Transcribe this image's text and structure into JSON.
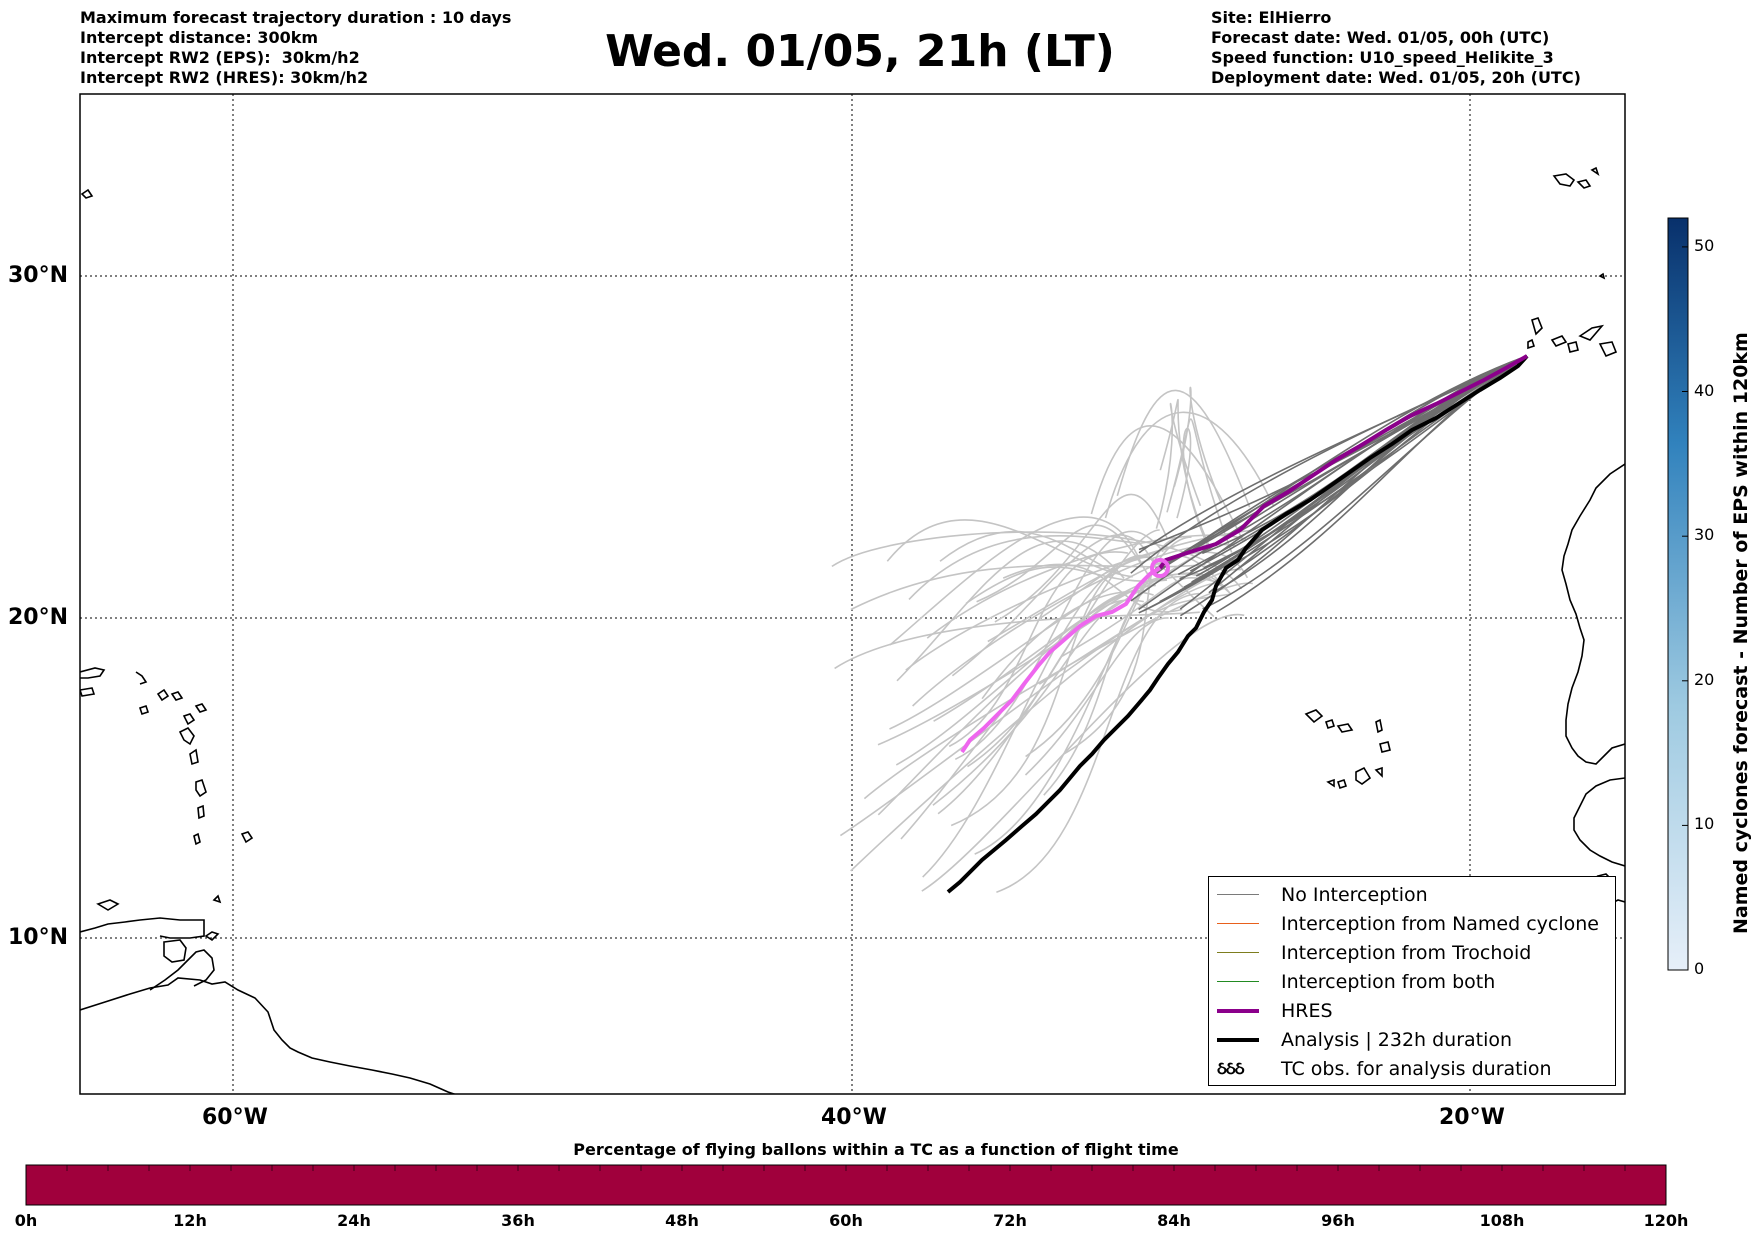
{
  "title": "Wed. 01/05, 21h (LT)",
  "info_left": [
    "Maximum forecast trajectory duration : 10 days",
    "Intercept distance: 300km",
    "Intercept RW2 (EPS):  30km/h2",
    "Intercept RW2 (HRES): 30km/h2"
  ],
  "info_right": [
    "Site: ElHierro",
    "Forecast date: Wed. 01/05, 00h (UTC)",
    "Speed function: U10_speed_Helikite_3",
    "Deployment date: Wed. 01/05, 20h (UTC)"
  ],
  "map": {
    "lon_ticks": [
      {
        "lon": -60,
        "label": "60°W"
      },
      {
        "lon": -40,
        "label": "40°W"
      },
      {
        "lon": -20,
        "label": "20°W"
      }
    ],
    "lat_ticks": [
      {
        "lat": 30,
        "label": "30°N"
      },
      {
        "lat": 20,
        "label": "20°N"
      },
      {
        "lat": 10,
        "label": "10°N"
      }
    ],
    "grid": "dotted"
  },
  "legend": {
    "items": [
      {
        "label": "No Interception",
        "color": "#7a7a7a",
        "kind": "line"
      },
      {
        "label": "Interception from Named cyclone",
        "color": "#e8601c",
        "kind": "line"
      },
      {
        "label": "Interception from Trochoid",
        "color": "#7d7d1e",
        "kind": "line"
      },
      {
        "label": "Interception from both",
        "color": "#228b22",
        "kind": "line"
      },
      {
        "label": "HRES",
        "color": "#8b008b",
        "kind": "thick"
      },
      {
        "label": "Analysis | 232h duration",
        "color": "#000000",
        "kind": "thick"
      },
      {
        "label": "TC obs. for analysis duration",
        "color": "#000000",
        "kind": "tc",
        "symbol": "ઠઠઠ"
      }
    ]
  },
  "colorbar": {
    "label": "Named cyclones forecast - Number of EPS within 120km",
    "ticks": [
      "0",
      "10",
      "20",
      "30",
      "40",
      "50"
    ],
    "min": 0,
    "max": 52,
    "color_low": "#e6eff9",
    "color_high": "#08306b"
  },
  "flight_bar": {
    "title": "Percentage of flying ballons within a TC as a function of flight time",
    "ticks": [
      "0h",
      "12h",
      "24h",
      "36h",
      "48h",
      "60h",
      "72h",
      "84h",
      "96h",
      "108h",
      "120h"
    ],
    "fill_color": "#a0003c"
  },
  "colors": {
    "eps_light": "#c4c4c4",
    "eps_dark": "#6e6e6e",
    "hres": "#8b008b",
    "hres_light": "#ee66ee",
    "analysis": "#000000"
  }
}
